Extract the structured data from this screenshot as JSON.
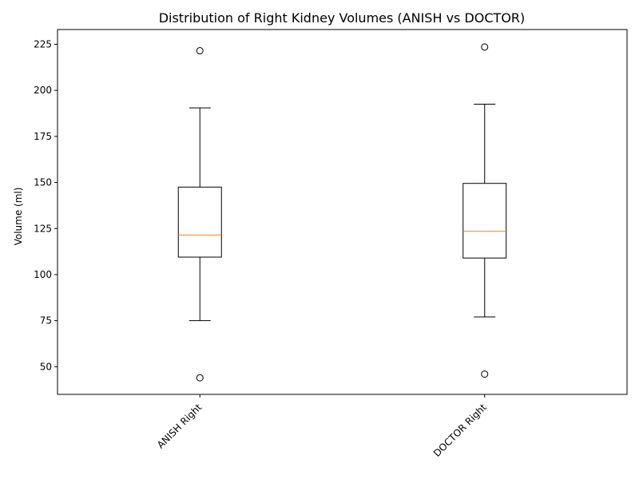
{
  "chart_data": {
    "type": "box",
    "title": "Distribution of Right Kidney Volumes (ANISH vs DOCTOR)",
    "xlabel": "",
    "ylabel": "Volume (ml)",
    "ylim": [
      35,
      233
    ],
    "yticks": [
      50,
      75,
      100,
      125,
      150,
      175,
      200,
      225
    ],
    "grid": false,
    "categories": [
      "ANISH Right",
      "DOCTOR Right"
    ],
    "boxes": [
      {
        "label": "ANISH Right",
        "whisker_low": 75,
        "q1": 109.5,
        "median": 121.5,
        "q3": 147.5,
        "whisker_high": 190.5,
        "outliers": [
          44,
          221.5
        ]
      },
      {
        "label": "DOCTOR Right",
        "whisker_low": 77,
        "q1": 109,
        "median": 123.5,
        "q3": 149.5,
        "whisker_high": 192.5,
        "outliers": [
          46,
          223.5
        ]
      }
    ],
    "colors": {
      "box": "#000000",
      "median": "#ff7f0e",
      "outlier_edge": "#000000"
    }
  }
}
